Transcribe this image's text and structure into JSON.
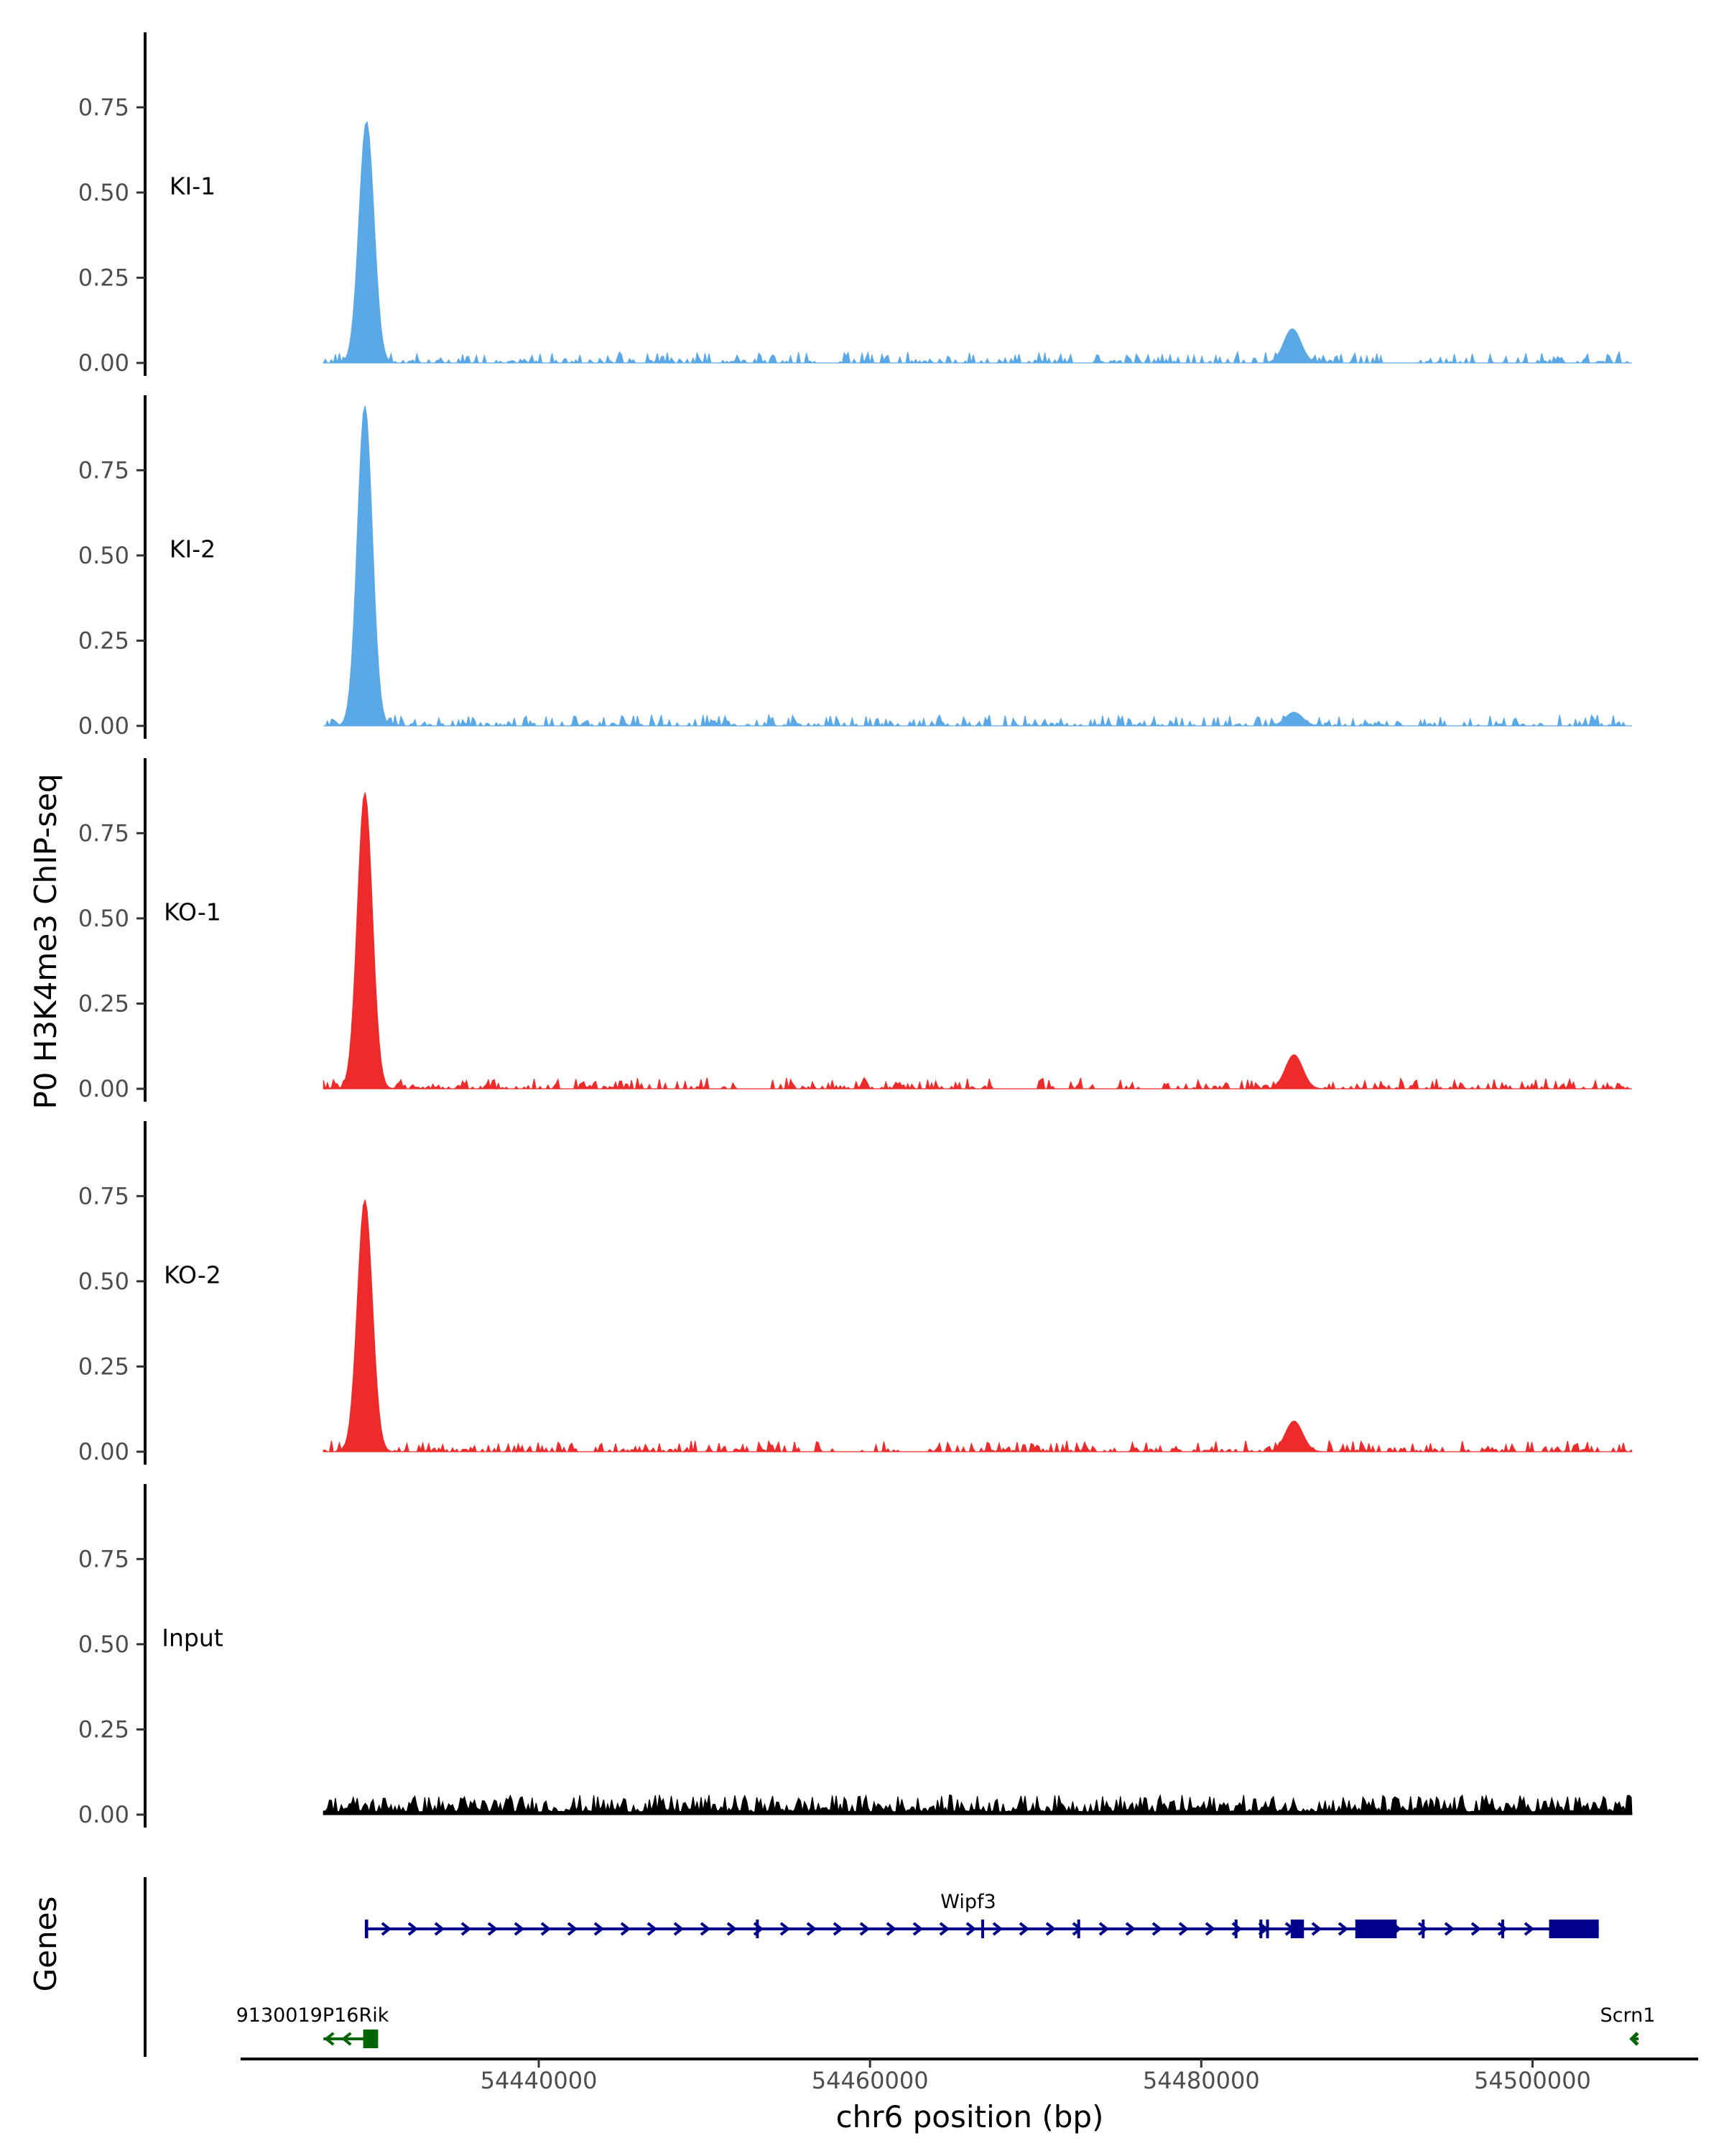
{
  "chart_data": {
    "type": "area",
    "title": "",
    "ylabel": "P0 H3K4me3 ChIP-seq",
    "xlabel": "chr6 position (bp)",
    "xlim": [
      54422000,
      54510000
    ],
    "ylim": [
      0,
      0.97
    ],
    "yticks": [
      0.0,
      0.25,
      0.5,
      0.75
    ],
    "ytick_labels": [
      "0.00",
      "0.25",
      "0.50",
      "0.75"
    ],
    "xticks": [
      54440000,
      54460000,
      54480000,
      54500000
    ],
    "xtick_labels": [
      "54440000",
      "54460000",
      "54480000",
      "54500000"
    ],
    "track_range": [
      54427000,
      54506000
    ],
    "colors": {
      "KI": "#5aa9e6",
      "KO": "#ee2b2b",
      "Input": "#000000",
      "gene_plus": "#00008b",
      "gene_minus": "#006400"
    },
    "tracks": [
      {
        "name": "KI-1",
        "color": "#5aa9e6",
        "baseline": 0.015,
        "peaks": [
          {
            "x": 54429600,
            "y": 0.71
          },
          {
            "x": 54485500,
            "y": 0.1
          }
        ],
        "gaps": [
          [
            54457000,
            54457600
          ],
          [
            54491000,
            54493000
          ]
        ]
      },
      {
        "name": "KI-2",
        "color": "#5aa9e6",
        "baseline": 0.015,
        "peaks": [
          {
            "x": 54429500,
            "y": 0.94
          },
          {
            "x": 54485600,
            "y": 0.04
          }
        ],
        "gaps": []
      },
      {
        "name": "KO-1",
        "color": "#ee2b2b",
        "baseline": 0.02,
        "peaks": [
          {
            "x": 54429500,
            "y": 0.87
          },
          {
            "x": 54485600,
            "y": 0.1
          }
        ],
        "gaps": [
          [
            54452000,
            54453500
          ],
          [
            54468000,
            54470000
          ]
        ]
      },
      {
        "name": "KO-2",
        "color": "#ee2b2b",
        "baseline": 0.02,
        "peaks": [
          {
            "x": 54429500,
            "y": 0.74
          },
          {
            "x": 54485600,
            "y": 0.09
          }
        ],
        "gaps": [
          [
            54458000,
            54459500
          ],
          [
            54462000,
            54463500
          ]
        ]
      },
      {
        "name": "Input",
        "color": "#000000",
        "baseline": 0.035,
        "peaks": [],
        "gaps": []
      }
    ],
    "genes_label": "Genes",
    "genes": [
      {
        "name": "Wipf3",
        "strand": "+",
        "color": "#00008b",
        "start": 54429500,
        "end": 54504000,
        "exons": [
          [
            54429500,
            54429700
          ],
          [
            54485400,
            54486200
          ],
          [
            54489300,
            54491800
          ],
          [
            54501000,
            54504000
          ]
        ],
        "ticks": [
          54453200,
          54466800,
          54472600,
          54482100,
          54483600,
          54484000,
          54493400,
          54498200
        ]
      },
      {
        "name": "9130019P16Rik",
        "strand": "-",
        "color": "#006400",
        "start": 54427000,
        "end": 54430300,
        "exons": [
          [
            54429400,
            54430300
          ]
        ],
        "ticks": []
      },
      {
        "name": "Scrn1",
        "strand": "-",
        "color": "#006400",
        "start": 54506000,
        "end": 54506400,
        "exons": [],
        "ticks": []
      }
    ]
  }
}
